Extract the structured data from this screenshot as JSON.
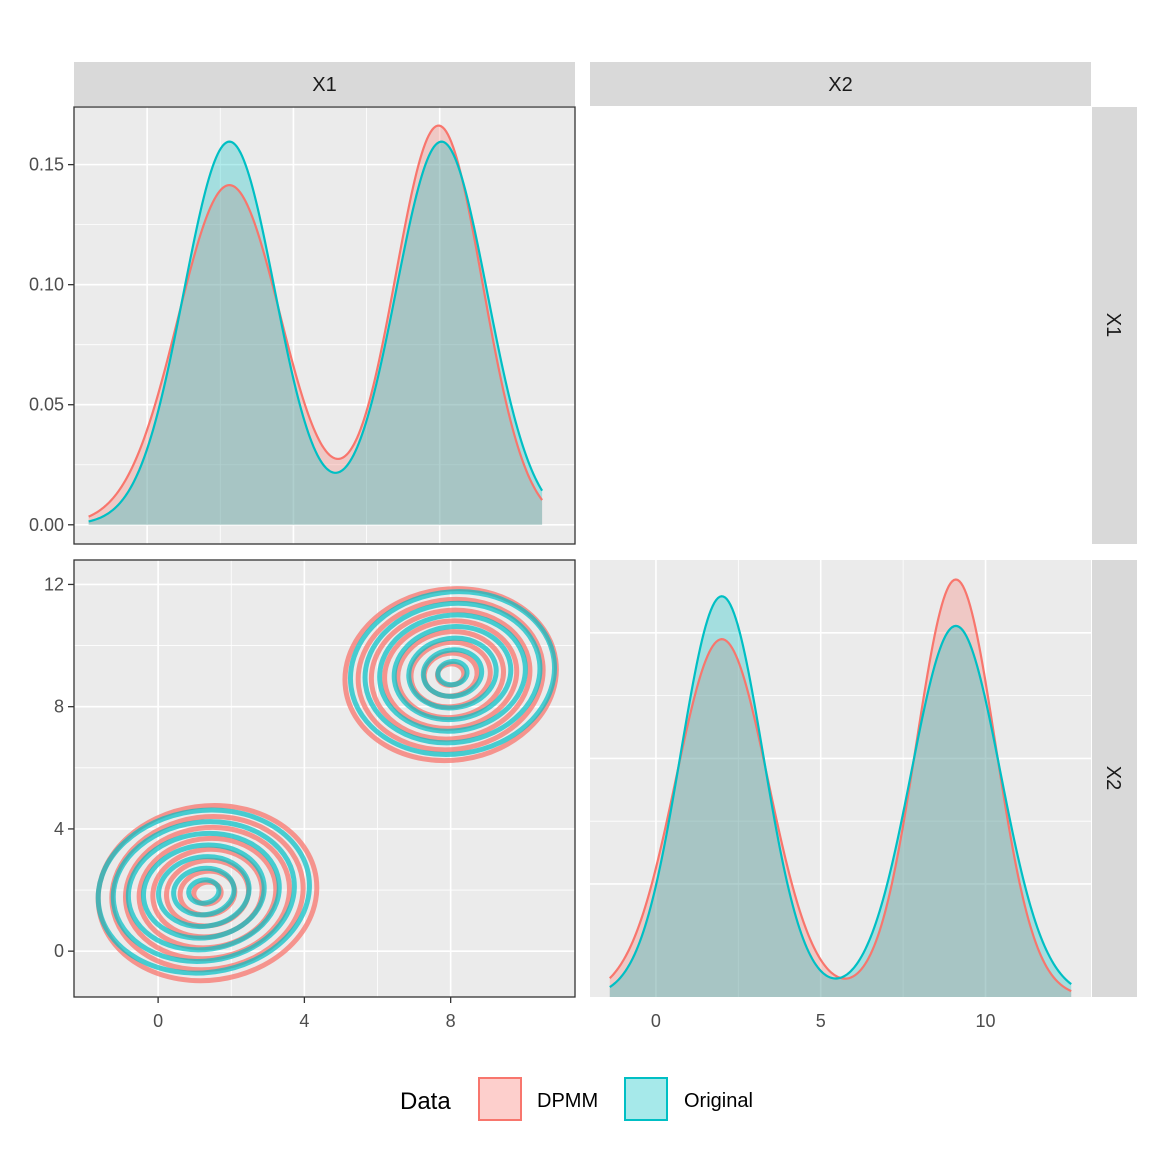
{
  "colors": {
    "dpmm": "#F8766D",
    "original": "#00BFC4",
    "panel_bg": "#EBEBEB",
    "strip_bg": "#D9D9D9",
    "grid": "#FFFFFF"
  },
  "chart_data": {
    "type": "pairs-density",
    "variables": [
      "X1",
      "X2"
    ],
    "legend": {
      "title": "Data",
      "position": "bottom",
      "entries": [
        "DPMM",
        "Original"
      ]
    },
    "panels": {
      "x1_density": {
        "type": "area",
        "xlim": [
          -2.0,
          11.7
        ],
        "ylim": [
          -0.008,
          0.174
        ],
        "yticks": [
          0.0,
          0.05,
          0.1,
          0.15
        ],
        "ytick_labels": [
          "0.00",
          "0.05",
          "0.10",
          "0.15"
        ],
        "series": [
          {
            "name": "DPMM",
            "x_range": [
              -1.6,
              10.8
            ],
            "components": [
              {
                "weight": 0.5,
                "mean": 2.25,
                "sd": 1.41
              },
              {
                "weight": 0.5,
                "mean": 7.97,
                "sd": 1.2
              }
            ]
          },
          {
            "name": "Original",
            "x_range": [
              -1.6,
              10.8
            ],
            "components": [
              {
                "weight": 0.5,
                "mean": 2.25,
                "sd": 1.25
              },
              {
                "weight": 0.5,
                "mean": 8.05,
                "sd": 1.25
              }
            ]
          }
        ]
      },
      "x2_density": {
        "type": "area",
        "xlim": [
          -2.0,
          13.2
        ],
        "ylim": [
          0.0,
          0.174
        ],
        "xticks": [
          0,
          5,
          10
        ],
        "xtick_labels": [
          "0",
          "5",
          "10"
        ],
        "series": [
          {
            "name": "DPMM",
            "x_range": [
              -1.4,
              12.6
            ],
            "components": [
              {
                "weight": 0.5,
                "mean": 2.0,
                "sd": 1.4
              },
              {
                "weight": 0.5,
                "mean": 9.1,
                "sd": 1.2
              }
            ]
          },
          {
            "name": "Original",
            "x_range": [
              -1.4,
              12.6
            ],
            "components": [
              {
                "weight": 0.5,
                "mean": 2.0,
                "sd": 1.25
              },
              {
                "weight": 0.5,
                "mean": 9.1,
                "sd": 1.35
              }
            ]
          }
        ]
      },
      "x1_x2_contour": {
        "type": "contour",
        "xlim": [
          -2.3,
          11.4
        ],
        "ylim": [
          -1.5,
          12.8
        ],
        "xticks": [
          0,
          4,
          8
        ],
        "xtick_labels": [
          "0",
          "4",
          "8"
        ],
        "yticks": [
          0,
          4,
          8,
          12
        ],
        "ytick_labels": [
          "0",
          "4",
          "8",
          "12"
        ],
        "series": [
          {
            "name": "DPMM",
            "levels": 8,
            "clusters": [
              {
                "cx": 1.35,
                "cy": 1.9,
                "rx_max": 3.0,
                "ry_max": 2.85,
                "tilt_deg": -8
              },
              {
                "cx": 8.0,
                "cy": 9.05,
                "rx_max": 2.9,
                "ry_max": 2.8,
                "tilt_deg": -8
              }
            ]
          },
          {
            "name": "Original",
            "levels": 7,
            "clusters": [
              {
                "cx": 1.25,
                "cy": 1.95,
                "rx_max": 2.9,
                "ry_max": 2.65,
                "tilt_deg": -8
              },
              {
                "cx": 8.05,
                "cy": 9.1,
                "rx_max": 2.8,
                "ry_max": 2.65,
                "tilt_deg": -8
              }
            ]
          }
        ]
      }
    }
  }
}
